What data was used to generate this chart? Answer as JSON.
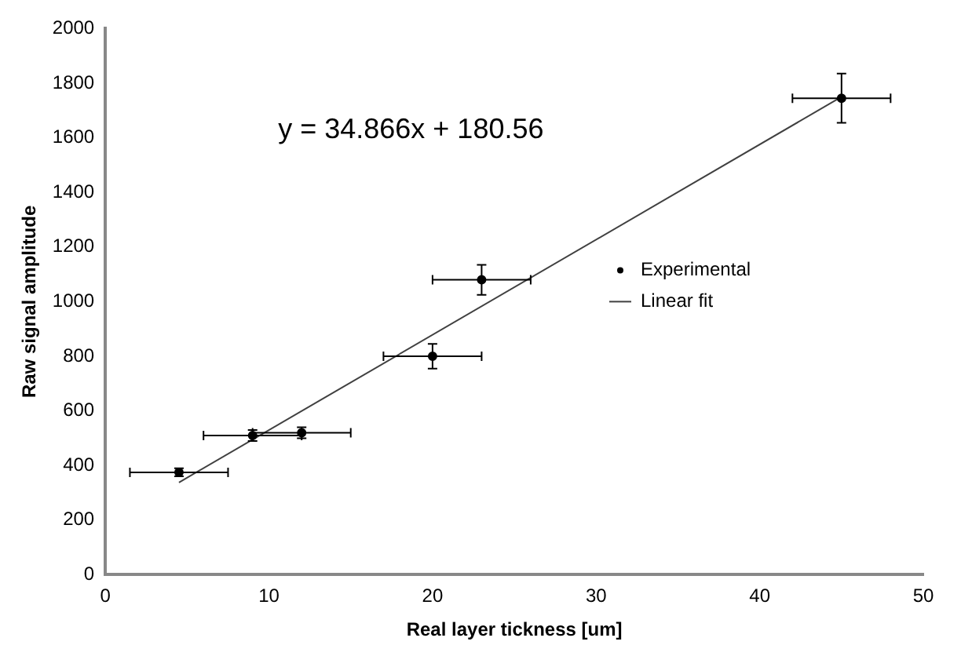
{
  "chart_data": {
    "type": "scatter",
    "xlabel": "Real layer tickness [um]",
    "ylabel": "Raw signal amplitude",
    "annotations": [
      "y = 34.866x + 180.56"
    ],
    "series": [
      {
        "name": "Experimental",
        "type": "scatter",
        "color": "#000000",
        "marker": "circle",
        "x": [
          4.5,
          9,
          12,
          20,
          23,
          45
        ],
        "values": [
          375,
          510,
          520,
          800,
          1080,
          1745
        ],
        "errors": [
          15,
          20,
          20,
          45,
          55,
          90
        ],
        "xerrors": [
          3,
          3,
          3,
          3,
          3,
          3
        ]
      },
      {
        "name": "Linear fit",
        "type": "line",
        "color": "#404040",
        "marker": "none",
        "line_style": "solid",
        "x": [
          4.5,
          45
        ],
        "values": [
          338,
          1750
        ]
      }
    ],
    "xlim": [
      0,
      50
    ],
    "xticks": [
      0,
      10,
      20,
      30,
      40,
      50
    ],
    "ylim": [
      0,
      2000
    ],
    "yticks": [
      0,
      200,
      400,
      600,
      800,
      1000,
      1200,
      1400,
      1600,
      1800,
      2000
    ],
    "grid": false,
    "legend": "right"
  }
}
